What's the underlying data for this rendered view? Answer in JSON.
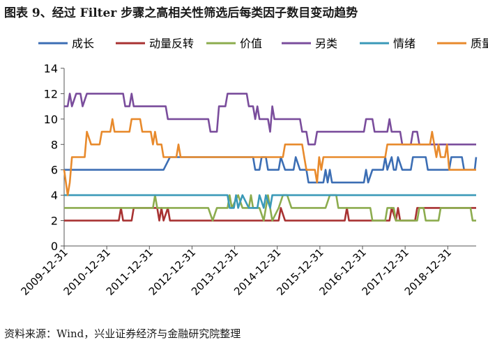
{
  "header": {
    "title": "图表 9、经过 Filter 步骤之高相关性筛选后每类因子数目变动趋势"
  },
  "footer": {
    "source": "资料来源：Wind，兴业证券经济与金融研究院整理"
  },
  "chart_data": {
    "type": "line",
    "title": "",
    "xlabel": "",
    "ylabel": "",
    "ylim": [
      0,
      14
    ],
    "yticks": [
      0,
      2,
      4,
      6,
      8,
      10,
      12,
      14
    ],
    "x_range": [
      2009.917,
      2019.583
    ],
    "xticks": [
      {
        "x": 2009.917,
        "label": "2009-12-31"
      },
      {
        "x": 2010.917,
        "label": "2010-12-31"
      },
      {
        "x": 2011.917,
        "label": "2011-12-31"
      },
      {
        "x": 2012.917,
        "label": "2012-12-31"
      },
      {
        "x": 2013.917,
        "label": "2013-12-31"
      },
      {
        "x": 2014.917,
        "label": "2014-12-31"
      },
      {
        "x": 2015.917,
        "label": "2015-12-31"
      },
      {
        "x": 2016.917,
        "label": "2016-12-31"
      },
      {
        "x": 2017.917,
        "label": "2017-12-31"
      },
      {
        "x": 2018.917,
        "label": "2018-12-31"
      }
    ],
    "legend_position": "top",
    "grid": false,
    "series": [
      {
        "name": "成长",
        "color": "#3c6eb4",
        "points": [
          [
            2009.917,
            6
          ],
          [
            2012.25,
            6
          ],
          [
            2012.4,
            7
          ],
          [
            2014.35,
            7
          ],
          [
            2014.4,
            6
          ],
          [
            2014.5,
            6
          ],
          [
            2014.55,
            7
          ],
          [
            2014.65,
            7
          ],
          [
            2014.7,
            6
          ],
          [
            2014.95,
            6
          ],
          [
            2015.0,
            7
          ],
          [
            2015.1,
            6
          ],
          [
            2015.3,
            6
          ],
          [
            2015.35,
            7
          ],
          [
            2015.45,
            6
          ],
          [
            2015.6,
            6
          ],
          [
            2015.65,
            5
          ],
          [
            2016.0,
            5
          ],
          [
            2016.05,
            6
          ],
          [
            2016.1,
            5
          ],
          [
            2016.15,
            6
          ],
          [
            2016.2,
            5
          ],
          [
            2016.95,
            5
          ],
          [
            2017.0,
            6
          ],
          [
            2017.05,
            5
          ],
          [
            2017.15,
            6
          ],
          [
            2017.4,
            6
          ],
          [
            2017.45,
            7
          ],
          [
            2017.5,
            6
          ],
          [
            2017.6,
            7
          ],
          [
            2017.65,
            6
          ],
          [
            2017.7,
            6
          ],
          [
            2017.75,
            7
          ],
          [
            2017.85,
            6
          ],
          [
            2018.05,
            6
          ],
          [
            2018.1,
            7
          ],
          [
            2018.4,
            7
          ],
          [
            2018.45,
            6
          ],
          [
            2018.95,
            6
          ],
          [
            2019.0,
            7
          ],
          [
            2019.25,
            7
          ],
          [
            2019.3,
            6
          ],
          [
            2019.55,
            6
          ],
          [
            2019.583,
            7
          ]
        ]
      },
      {
        "name": "动量反转",
        "color": "#a83232",
        "points": [
          [
            2009.917,
            2
          ],
          [
            2011.2,
            2
          ],
          [
            2011.25,
            3
          ],
          [
            2011.3,
            2
          ],
          [
            2011.5,
            2
          ],
          [
            2011.55,
            3
          ],
          [
            2012.1,
            3
          ],
          [
            2012.15,
            2
          ],
          [
            2012.2,
            3
          ],
          [
            2012.25,
            2
          ],
          [
            2012.35,
            3
          ],
          [
            2012.4,
            2
          ],
          [
            2014.95,
            2
          ],
          [
            2015.0,
            3
          ],
          [
            2015.1,
            2
          ],
          [
            2016.5,
            2
          ],
          [
            2016.55,
            3
          ],
          [
            2016.6,
            2
          ],
          [
            2017.55,
            2
          ],
          [
            2017.6,
            3
          ],
          [
            2017.7,
            2
          ],
          [
            2017.75,
            3
          ],
          [
            2017.8,
            2
          ],
          [
            2018.15,
            2
          ],
          [
            2018.2,
            3
          ],
          [
            2019.583,
            3
          ]
        ]
      },
      {
        "name": "价值",
        "color": "#8cac4e",
        "points": [
          [
            2009.917,
            3
          ],
          [
            2012.0,
            3
          ],
          [
            2012.05,
            4
          ],
          [
            2012.1,
            3
          ],
          [
            2013.3,
            3
          ],
          [
            2013.4,
            2
          ],
          [
            2013.5,
            3
          ],
          [
            2013.75,
            3
          ],
          [
            2013.8,
            4
          ],
          [
            2013.85,
            3
          ],
          [
            2014.0,
            4
          ],
          [
            2014.1,
            3
          ],
          [
            2014.25,
            3
          ],
          [
            2014.3,
            4
          ],
          [
            2014.35,
            3
          ],
          [
            2014.5,
            3
          ],
          [
            2014.6,
            2
          ],
          [
            2014.7,
            4
          ],
          [
            2014.8,
            2
          ],
          [
            2014.95,
            3
          ],
          [
            2015.05,
            4
          ],
          [
            2015.15,
            4
          ],
          [
            2015.25,
            3
          ],
          [
            2016.05,
            3
          ],
          [
            2016.15,
            4
          ],
          [
            2016.3,
            4
          ],
          [
            2016.35,
            3
          ],
          [
            2017.1,
            3
          ],
          [
            2017.15,
            2
          ],
          [
            2017.45,
            2
          ],
          [
            2017.5,
            3
          ],
          [
            2017.65,
            3
          ],
          [
            2017.7,
            2
          ],
          [
            2018.2,
            2
          ],
          [
            2018.25,
            3
          ],
          [
            2018.35,
            3
          ],
          [
            2018.4,
            2
          ],
          [
            2018.7,
            2
          ],
          [
            2018.75,
            3
          ],
          [
            2019.45,
            3
          ],
          [
            2019.5,
            2
          ],
          [
            2019.583,
            2
          ]
        ]
      },
      {
        "name": "另类",
        "color": "#7a4d9c",
        "points": [
          [
            2009.917,
            11
          ],
          [
            2010.0,
            11
          ],
          [
            2010.05,
            12
          ],
          [
            2010.1,
            11
          ],
          [
            2010.2,
            12
          ],
          [
            2010.3,
            12
          ],
          [
            2010.35,
            11
          ],
          [
            2010.45,
            12
          ],
          [
            2011.3,
            12
          ],
          [
            2011.35,
            11
          ],
          [
            2011.45,
            11
          ],
          [
            2011.5,
            12
          ],
          [
            2011.55,
            11
          ],
          [
            2012.3,
            11
          ],
          [
            2012.35,
            10
          ],
          [
            2013.3,
            10
          ],
          [
            2013.35,
            9
          ],
          [
            2013.5,
            9
          ],
          [
            2013.55,
            11
          ],
          [
            2013.7,
            11
          ],
          [
            2013.75,
            12
          ],
          [
            2014.2,
            12
          ],
          [
            2014.25,
            11
          ],
          [
            2014.35,
            11
          ],
          [
            2014.4,
            10
          ],
          [
            2014.45,
            11
          ],
          [
            2014.5,
            10
          ],
          [
            2014.7,
            10
          ],
          [
            2014.75,
            9
          ],
          [
            2014.8,
            11
          ],
          [
            2014.85,
            10
          ],
          [
            2015.45,
            10
          ],
          [
            2015.5,
            9
          ],
          [
            2015.6,
            9
          ],
          [
            2015.65,
            8
          ],
          [
            2015.8,
            8
          ],
          [
            2015.85,
            9
          ],
          [
            2016.95,
            9
          ],
          [
            2017.0,
            10
          ],
          [
            2017.15,
            10
          ],
          [
            2017.2,
            9
          ],
          [
            2017.5,
            9
          ],
          [
            2017.55,
            10
          ],
          [
            2017.6,
            9
          ],
          [
            2017.8,
            9
          ],
          [
            2017.85,
            8
          ],
          [
            2018.05,
            8
          ],
          [
            2018.1,
            9
          ],
          [
            2018.2,
            9
          ],
          [
            2018.25,
            8
          ],
          [
            2019.583,
            8
          ]
        ]
      },
      {
        "name": "情绪",
        "color": "#3a99b8",
        "points": [
          [
            2009.917,
            4
          ],
          [
            2013.75,
            4
          ],
          [
            2013.8,
            3
          ],
          [
            2013.9,
            3
          ],
          [
            2013.95,
            4
          ],
          [
            2014.0,
            3
          ],
          [
            2014.1,
            4
          ],
          [
            2014.25,
            3
          ],
          [
            2014.45,
            3
          ],
          [
            2014.5,
            4
          ],
          [
            2014.6,
            3
          ],
          [
            2014.65,
            4
          ],
          [
            2014.75,
            3
          ],
          [
            2014.8,
            4
          ],
          [
            2019.583,
            4
          ]
        ]
      },
      {
        "name": "质量",
        "color": "#e88a2c",
        "points": [
          [
            2009.917,
            6
          ],
          [
            2010.0,
            4
          ],
          [
            2010.05,
            5
          ],
          [
            2010.1,
            7
          ],
          [
            2010.4,
            7
          ],
          [
            2010.45,
            9
          ],
          [
            2010.55,
            8
          ],
          [
            2010.75,
            8
          ],
          [
            2010.8,
            9
          ],
          [
            2011.0,
            9
          ],
          [
            2011.05,
            10
          ],
          [
            2011.1,
            9
          ],
          [
            2011.45,
            9
          ],
          [
            2011.5,
            10
          ],
          [
            2011.7,
            10
          ],
          [
            2011.75,
            9
          ],
          [
            2011.95,
            9
          ],
          [
            2012.0,
            8
          ],
          [
            2012.05,
            9
          ],
          [
            2012.1,
            8
          ],
          [
            2012.2,
            8
          ],
          [
            2012.25,
            7
          ],
          [
            2012.55,
            7
          ],
          [
            2012.6,
            8
          ],
          [
            2012.65,
            7
          ],
          [
            2015.05,
            7
          ],
          [
            2015.1,
            8
          ],
          [
            2015.5,
            8
          ],
          [
            2015.55,
            7
          ],
          [
            2015.6,
            6
          ],
          [
            2015.8,
            6
          ],
          [
            2015.85,
            5
          ],
          [
            2015.9,
            7
          ],
          [
            2015.95,
            6
          ],
          [
            2016.0,
            7
          ],
          [
            2017.45,
            7
          ],
          [
            2017.5,
            8
          ],
          [
            2018.5,
            8
          ],
          [
            2018.55,
            9
          ],
          [
            2018.65,
            7
          ],
          [
            2018.7,
            8
          ],
          [
            2018.75,
            7
          ],
          [
            2018.85,
            7
          ],
          [
            2018.9,
            8
          ],
          [
            2018.95,
            6
          ],
          [
            2019.583,
            6
          ]
        ]
      }
    ]
  }
}
